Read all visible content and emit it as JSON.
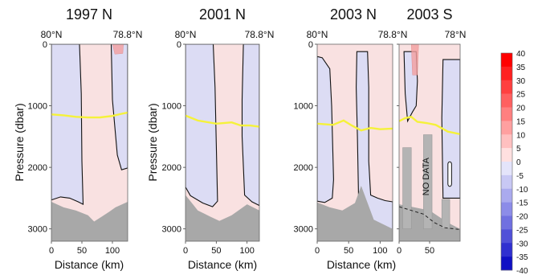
{
  "chart_data": {
    "type": "heatmap",
    "colors": {
      "positive_light": "#f9e1e1",
      "negative_light": "#dcdcf4",
      "terrain": "#a8a8a8",
      "contour": "#111111",
      "isoline": "#f5f23a"
    },
    "panels": [
      {
        "title": "1997 N",
        "top_left_label": "80°N",
        "top_right_label": "78.8°N",
        "ylabel": "Pressure (dbar)",
        "xlabel": "Distance (km)",
        "xlim": [
          0,
          125
        ],
        "ylim": [
          0,
          3200
        ],
        "xticks": [
          0,
          50,
          100
        ],
        "yticks": [
          0,
          1000,
          2000,
          3000
        ],
        "negative_regions": [
          [
            [
              0,
              0
            ],
            [
              46,
              0
            ],
            [
              49,
              800
            ],
            [
              50,
              1900
            ],
            [
              52,
              2600
            ],
            [
              44,
              2560
            ],
            [
              30,
              2500
            ],
            [
              15,
              2480
            ],
            [
              0,
              2530
            ]
          ],
          [
            [
              98,
              0
            ],
            [
              125,
              0
            ],
            [
              125,
              2010
            ],
            [
              115,
              2040
            ],
            [
              108,
              1800
            ],
            [
              100,
              900
            ]
          ]
        ],
        "positive_patches": [
          [
            [
              100,
              0
            ],
            [
              118,
              0
            ],
            [
              117,
              150
            ],
            [
              104,
              160
            ],
            [
              102,
              80
            ]
          ]
        ],
        "yellow_line": [
          [
            0,
            1140
          ],
          [
            20,
            1155
          ],
          [
            40,
            1180
          ],
          [
            60,
            1190
          ],
          [
            80,
            1188
          ],
          [
            100,
            1165
          ],
          [
            115,
            1130
          ],
          [
            125,
            1110
          ]
        ],
        "terrain": [
          [
            0,
            2560
          ],
          [
            20,
            2650
          ],
          [
            40,
            2700
          ],
          [
            60,
            2780
          ],
          [
            70,
            2880
          ],
          [
            95,
            2720
          ],
          [
            105,
            2650
          ],
          [
            125,
            2560
          ]
        ],
        "no_data_label": ""
      },
      {
        "title": "2001 N",
        "top_left_label": "80°N",
        "top_right_label": "78.8°N",
        "ylabel": "Pressure (dbar)",
        "xlabel": "Distance (km)",
        "xlim": [
          0,
          120
        ],
        "ylim": [
          0,
          3200
        ],
        "xticks": [
          0,
          50,
          100
        ],
        "yticks": [
          0,
          1000,
          2000,
          3000
        ],
        "negative_regions": [
          [
            [
              0,
              0
            ],
            [
              45,
              0
            ],
            [
              48,
              700
            ],
            [
              50,
              1600
            ],
            [
              52,
              2550
            ],
            [
              44,
              2640
            ],
            [
              28,
              2580
            ],
            [
              8,
              2460
            ],
            [
              0,
              2320
            ]
          ],
          [
            [
              94,
              0
            ],
            [
              120,
              0
            ],
            [
              120,
              2620
            ],
            [
              108,
              2560
            ],
            [
              96,
              2450
            ],
            [
              92,
              1500
            ],
            [
              92,
              900
            ]
          ]
        ],
        "positive_patches": [],
        "yellow_line": [
          [
            0,
            1160
          ],
          [
            20,
            1240
          ],
          [
            50,
            1290
          ],
          [
            75,
            1270
          ],
          [
            90,
            1320
          ],
          [
            105,
            1320
          ],
          [
            120,
            1340
          ]
        ],
        "terrain": [
          [
            0,
            2450
          ],
          [
            20,
            2700
          ],
          [
            40,
            2800
          ],
          [
            55,
            2870
          ],
          [
            75,
            2780
          ],
          [
            100,
            2600
          ],
          [
            120,
            2700
          ]
        ],
        "no_data_label": ""
      },
      {
        "title": "2003 N",
        "top_left_label": "80°N",
        "top_right_label": "78.8°N",
        "ylabel": "",
        "xlabel": "Distance (km)",
        "xlim": [
          0,
          120
        ],
        "ylim": [
          0,
          3200
        ],
        "xticks": [
          0,
          50,
          100
        ],
        "yticks": [
          0,
          1000,
          2000,
          3000
        ],
        "negative_regions": [
          [
            [
              0,
              200
            ],
            [
              8,
              220
            ],
            [
              20,
              400
            ],
            [
              23,
              1000
            ],
            [
              26,
              2200
            ],
            [
              24,
              2500
            ],
            [
              12,
              2570
            ],
            [
              0,
              2550
            ]
          ],
          [
            [
              63,
              120
            ],
            [
              80,
              120
            ],
            [
              82,
              700
            ],
            [
              82,
              1900
            ],
            [
              85,
              2450
            ],
            [
              96,
              2500
            ],
            [
              108,
              2540
            ],
            [
              120,
              2560
            ],
            [
              120,
              3200
            ],
            [
              67,
              3200
            ],
            [
              64,
              1500
            ],
            [
              62,
              700
            ]
          ]
        ],
        "positive_patches": [],
        "yellow_line": [
          [
            0,
            1290
          ],
          [
            25,
            1310
          ],
          [
            42,
            1240
          ],
          [
            55,
            1320
          ],
          [
            70,
            1400
          ],
          [
            85,
            1360
          ],
          [
            100,
            1380
          ],
          [
            120,
            1370
          ]
        ],
        "terrain": [
          [
            0,
            2570
          ],
          [
            20,
            2650
          ],
          [
            40,
            2700
          ],
          [
            60,
            2580
          ],
          [
            70,
            2300
          ],
          [
            90,
            2850
          ],
          [
            120,
            3000
          ]
        ],
        "no_data_label": ""
      },
      {
        "title": "2003 S",
        "top_left_label": "",
        "top_right_label": "78°N",
        "ylabel": "",
        "xlabel": "",
        "xlim": [
          0,
          100
        ],
        "ylim": [
          0,
          3200
        ],
        "xticks": [
          0,
          50
        ],
        "yticks": [
          0,
          1000,
          2000,
          3000
        ],
        "negative_regions": [
          [
            [
              8,
              120
            ],
            [
              28,
              120
            ],
            [
              30,
              600
            ],
            [
              28,
              1000
            ],
            [
              22,
              1100
            ],
            [
              14,
              1250
            ],
            [
              10,
              800
            ]
          ],
          [
            [
              72,
              250
            ],
            [
              100,
              250
            ],
            [
              100,
              2500
            ],
            [
              72,
              2500
            ],
            [
              70,
              1200
            ]
          ]
        ],
        "positive_patches": [
          [
            [
              20,
              0
            ],
            [
              32,
              0
            ],
            [
              30,
              500
            ],
            [
              22,
              500
            ]
          ]
        ],
        "yellow_line": [
          [
            0,
            1250
          ],
          [
            10,
            1200
          ],
          [
            20,
            1180
          ],
          [
            30,
            1260
          ],
          [
            45,
            1280
          ],
          [
            60,
            1310
          ],
          [
            80,
            1420
          ],
          [
            100,
            1460
          ]
        ],
        "terrain": [
          [
            0,
            2600
          ],
          [
            25,
            2650
          ],
          [
            50,
            2700
          ],
          [
            80,
            2900
          ],
          [
            100,
            3000
          ]
        ],
        "no_data_label": "NO DATA"
      }
    ],
    "colorbar": {
      "labels": [
        "40",
        "35",
        "30",
        "25",
        "20",
        "15",
        "10",
        "5",
        "0",
        "-5",
        "-10",
        "-15",
        "-20",
        "-25",
        "-30",
        "-35",
        "-40"
      ],
      "colors": [
        "#ff0000",
        "#ff2020",
        "#ff4040",
        "#ff6060",
        "#ff8080",
        "#ffa0a0",
        "#ffc0c0",
        "#ffe0e0",
        "#e4e4fa",
        "#c8c8f4",
        "#aaaaee",
        "#8c8ce8",
        "#7070e0",
        "#5050d8",
        "#3030d0",
        "#1010c4"
      ]
    }
  }
}
